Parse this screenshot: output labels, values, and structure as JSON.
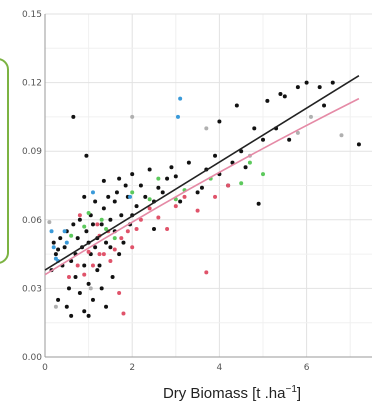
{
  "chart_data": {
    "type": "scatter",
    "title": "",
    "xlabel": "Dry Biomass [t .ha",
    "xlabel_exponent": "−1",
    "xlabel_close": "]",
    "ylabel": "",
    "xlim": [
      0,
      7.5
    ],
    "ylim": [
      0,
      0.15
    ],
    "x_ticks": [
      0,
      2,
      4,
      6
    ],
    "x_tick_labels": [
      "0",
      "2",
      "4",
      "6"
    ],
    "y_ticks": [
      0,
      0.03,
      0.06,
      0.09,
      0.12,
      0.15
    ],
    "y_tick_labels": [
      "0.00",
      "0.03",
      "0.06",
      "0.09",
      "0.12",
      "0.15"
    ],
    "grid": true,
    "legend": "none",
    "colors": {
      "black": "#111111",
      "blue": "#3a9ad9",
      "red": "#e0536a",
      "green": "#5cc95c",
      "gray": "#b0b0b0",
      "fit_line_black": "#222222",
      "fit_line_pink": "#e58aa6",
      "callout_border": "#7cb342"
    },
    "series": [
      {
        "color_key": "black",
        "points": [
          [
            0.15,
            0.038
          ],
          [
            0.2,
            0.05
          ],
          [
            0.25,
            0.045
          ],
          [
            0.3,
            0.025
          ],
          [
            0.35,
            0.052
          ],
          [
            0.4,
            0.04
          ],
          [
            0.45,
            0.048
          ],
          [
            0.5,
            0.055
          ],
          [
            0.55,
            0.03
          ],
          [
            0.6,
            0.042
          ],
          [
            0.6,
            0.018
          ],
          [
            0.65,
            0.105
          ],
          [
            0.65,
            0.058
          ],
          [
            0.7,
            0.045
          ],
          [
            0.7,
            0.035
          ],
          [
            0.75,
            0.052
          ],
          [
            0.8,
            0.06
          ],
          [
            0.8,
            0.028
          ],
          [
            0.85,
            0.048
          ],
          [
            0.9,
            0.07
          ],
          [
            0.9,
            0.04
          ],
          [
            0.95,
            0.088
          ],
          [
            0.95,
            0.055
          ],
          [
            1.0,
            0.05
          ],
          [
            1.0,
            0.032
          ],
          [
            1.05,
            0.045
          ],
          [
            1.05,
            0.062
          ],
          [
            1.1,
            0.058
          ],
          [
            1.1,
            0.025
          ],
          [
            1.15,
            0.068
          ],
          [
            1.15,
            0.048
          ],
          [
            1.2,
            0.052
          ],
          [
            1.2,
            0.038
          ],
          [
            1.25,
            0.04
          ],
          [
            1.3,
            0.058
          ],
          [
            1.3,
            0.03
          ],
          [
            1.35,
            0.065
          ],
          [
            1.4,
            0.05
          ],
          [
            1.4,
            0.022
          ],
          [
            1.45,
            0.07
          ],
          [
            1.5,
            0.048
          ],
          [
            1.5,
            0.06
          ],
          [
            1.55,
            0.035
          ],
          [
            1.6,
            0.068
          ],
          [
            1.6,
            0.055
          ],
          [
            1.65,
            0.072
          ],
          [
            1.7,
            0.045
          ],
          [
            1.7,
            0.078
          ],
          [
            1.75,
            0.062
          ],
          [
            1.8,
            0.05
          ],
          [
            1.85,
            0.075
          ],
          [
            1.9,
            0.07
          ],
          [
            1.95,
            0.058
          ],
          [
            2.0,
            0.08
          ],
          [
            2.0,
            0.062
          ],
          [
            2.1,
            0.066
          ],
          [
            2.2,
            0.075
          ],
          [
            2.3,
            0.07
          ],
          [
            2.4,
            0.082
          ],
          [
            2.5,
            0.068
          ],
          [
            2.6,
            0.074
          ],
          [
            2.7,
            0.072
          ],
          [
            2.8,
            0.078
          ],
          [
            2.9,
            0.083
          ],
          [
            3.0,
            0.079
          ],
          [
            3.1,
            0.068
          ],
          [
            3.3,
            0.085
          ],
          [
            3.5,
            0.072
          ],
          [
            3.7,
            0.082
          ],
          [
            3.9,
            0.088
          ],
          [
            4.0,
            0.08
          ],
          [
            4.2,
            0.075
          ],
          [
            4.4,
            0.11
          ],
          [
            4.5,
            0.09
          ],
          [
            4.6,
            0.083
          ],
          [
            4.8,
            0.1
          ],
          [
            4.9,
            0.067
          ],
          [
            5.0,
            0.095
          ],
          [
            5.1,
            0.112
          ],
          [
            5.3,
            0.1
          ],
          [
            5.4,
            0.115
          ],
          [
            5.5,
            0.114
          ],
          [
            5.6,
            0.095
          ],
          [
            5.8,
            0.118
          ],
          [
            6.0,
            0.12
          ],
          [
            6.3,
            0.118
          ],
          [
            6.4,
            0.11
          ],
          [
            6.6,
            0.12
          ],
          [
            7.2,
            0.093
          ],
          [
            0.3,
            0.047
          ],
          [
            0.5,
            0.022
          ],
          [
            0.9,
            0.02
          ],
          [
            1.0,
            0.018
          ],
          [
            1.35,
            0.077
          ],
          [
            2.5,
            0.056
          ],
          [
            3.6,
            0.074
          ],
          [
            4.0,
            0.103
          ],
          [
            4.3,
            0.085
          ]
        ]
      },
      {
        "color_key": "blue",
        "points": [
          [
            0.15,
            0.055
          ],
          [
            0.2,
            0.048
          ],
          [
            0.25,
            0.043
          ],
          [
            0.3,
            0.042
          ],
          [
            0.45,
            0.055
          ],
          [
            0.5,
            0.05
          ],
          [
            1.1,
            0.072
          ],
          [
            3.1,
            0.113
          ],
          [
            3.05,
            0.105
          ],
          [
            1.95,
            0.07
          ]
        ]
      },
      {
        "color_key": "red",
        "points": [
          [
            0.55,
            0.035
          ],
          [
            0.75,
            0.04
          ],
          [
            0.9,
            0.036
          ],
          [
            1.0,
            0.046
          ],
          [
            1.1,
            0.04
          ],
          [
            1.2,
            0.058
          ],
          [
            1.25,
            0.045
          ],
          [
            1.35,
            0.045
          ],
          [
            1.45,
            0.055
          ],
          [
            1.5,
            0.042
          ],
          [
            1.6,
            0.047
          ],
          [
            1.7,
            0.028
          ],
          [
            1.75,
            0.052
          ],
          [
            1.8,
            0.019
          ],
          [
            1.9,
            0.055
          ],
          [
            2.0,
            0.048
          ],
          [
            2.1,
            0.056
          ],
          [
            2.2,
            0.06
          ],
          [
            2.4,
            0.065
          ],
          [
            2.6,
            0.061
          ],
          [
            2.8,
            0.056
          ],
          [
            3.0,
            0.066
          ],
          [
            3.2,
            0.07
          ],
          [
            3.5,
            0.064
          ],
          [
            3.7,
            0.037
          ],
          [
            3.9,
            0.07
          ],
          [
            4.2,
            0.075
          ],
          [
            1.25,
            0.053
          ],
          [
            0.8,
            0.062
          ]
        ]
      },
      {
        "color_key": "green",
        "points": [
          [
            0.9,
            0.057
          ],
          [
            1.0,
            0.063
          ],
          [
            1.3,
            0.06
          ],
          [
            1.4,
            0.056
          ],
          [
            1.6,
            0.052
          ],
          [
            2.0,
            0.072
          ],
          [
            2.4,
            0.069
          ],
          [
            2.6,
            0.078
          ],
          [
            3.0,
            0.069
          ],
          [
            3.2,
            0.073
          ],
          [
            3.8,
            0.078
          ],
          [
            4.5,
            0.076
          ],
          [
            4.7,
            0.085
          ],
          [
            5.0,
            0.08
          ],
          [
            0.6,
            0.053
          ]
        ]
      },
      {
        "color_key": "gray",
        "points": [
          [
            0.25,
            0.022
          ],
          [
            2.0,
            0.105
          ],
          [
            3.7,
            0.1
          ],
          [
            4.7,
            0.088
          ],
          [
            5.8,
            0.098
          ],
          [
            6.1,
            0.105
          ],
          [
            0.1,
            0.059
          ],
          [
            6.8,
            0.097
          ],
          [
            1.05,
            0.03
          ]
        ]
      }
    ],
    "fit_lines": [
      {
        "color_key": "fit_line_black",
        "x": [
          0,
          7.2
        ],
        "y": [
          0.038,
          0.123
        ]
      },
      {
        "color_key": "fit_line_pink",
        "x": [
          0,
          7.2
        ],
        "y": [
          0.036,
          0.113
        ],
        "curve": 0.004
      }
    ]
  }
}
